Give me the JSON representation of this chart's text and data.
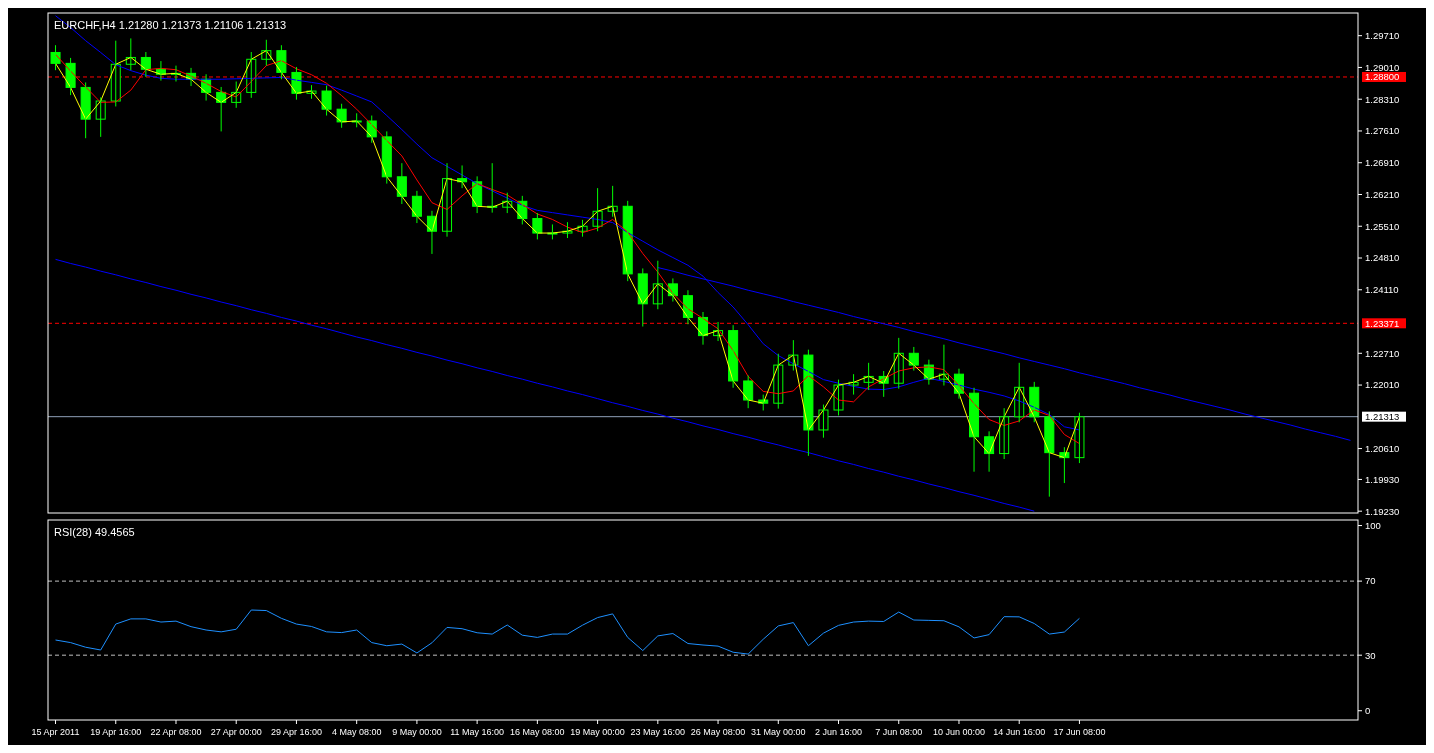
{
  "chart_data": [
    {
      "type": "candlestick",
      "title": "EURCHF,H4  1.21280 1.21373 1.21106 1.21313",
      "ylim": [
        1.1919,
        1.3021
      ],
      "yticks": [
        {
          "value": 1.2971,
          "label": "1.29710"
        },
        {
          "value": 1.2901,
          "label": "1.29010"
        },
        {
          "value": 1.2831,
          "label": "1.28310"
        },
        {
          "value": 1.2761,
          "label": "1.27610"
        },
        {
          "value": 1.2691,
          "label": "1.26910"
        },
        {
          "value": 1.2621,
          "label": "1.26210"
        },
        {
          "value": 1.2551,
          "label": "1.25510"
        },
        {
          "value": 1.2481,
          "label": "1.24810"
        },
        {
          "value": 1.2411,
          "label": "1.24110"
        },
        {
          "value": 1.2271,
          "label": "1.22710"
        },
        {
          "value": 1.2201,
          "label": "1.22010"
        },
        {
          "value": 1.2061,
          "label": "1.20610"
        },
        {
          "value": 1.1993,
          "label": "1.19930"
        },
        {
          "value": 1.1923,
          "label": "1.19230"
        }
      ],
      "tick_labels": "y",
      "ref_lines": [
        {
          "axis": "y",
          "value": 1.288,
          "label": "1.28800",
          "color": "#ff0000",
          "line_style": "dashed"
        },
        {
          "axis": "y",
          "value": 1.23371,
          "label": "1.23371",
          "color": "#ff0000",
          "line_style": "dashed"
        },
        {
          "axis": "y",
          "value": 1.21313,
          "label": "1.21313",
          "color": "#8fa0b8",
          "line_style": "solid"
        }
      ],
      "series": [
        {
          "type": "line",
          "color": "#0000ff",
          "values": [
            1.2478,
            1.2469,
            1.2461,
            1.2452,
            1.2444,
            1.2435,
            1.2427,
            1.2418,
            1.241,
            1.2401,
            1.2393,
            1.2384,
            1.2376,
            1.2367,
            1.2359,
            1.235,
            1.2342,
            1.2333,
            1.2325,
            1.2316,
            1.2307,
            1.2299,
            1.229,
            1.2282,
            1.2273,
            1.2265,
            1.2256,
            1.2248,
            1.2239,
            1.2231,
            1.2222,
            1.2214,
            1.2205,
            1.2197,
            1.2188,
            1.218,
            1.2171,
            1.2162,
            1.2154,
            1.2145,
            1.2137,
            1.2128,
            1.212,
            1.2111,
            1.2103,
            1.2094,
            1.2086,
            1.2077,
            1.2069,
            1.206,
            1.2052,
            1.2043,
            1.2034,
            1.2026,
            1.2017,
            1.2009,
            1.2,
            1.1992,
            1.1983,
            1.1975,
            1.1966,
            1.1958,
            1.1949,
            1.194,
            1.1932,
            1.1923,
            null,
            null,
            null,
            null,
            null,
            null,
            null,
            null,
            null,
            null,
            null,
            null,
            null,
            null,
            null,
            null,
            null,
            null,
            null,
            null,
            null
          ]
        },
        {
          "type": "line",
          "color": "#0000ff",
          "values": [
            null,
            null,
            null,
            null,
            null,
            null,
            null,
            null,
            null,
            null,
            null,
            null,
            null,
            null,
            null,
            null,
            null,
            null,
            null,
            null,
            null,
            null,
            null,
            null,
            null,
            null,
            null,
            null,
            null,
            null,
            null,
            null,
            null,
            null,
            null,
            null,
            null,
            null,
            null,
            null,
            1.246,
            1.2452,
            1.2443,
            1.2435,
            1.2427,
            1.2419,
            1.241,
            1.2402,
            1.2394,
            1.2385,
            1.2377,
            1.2369,
            1.2361,
            1.2352,
            1.2344,
            1.2336,
            1.2328,
            1.2319,
            1.2311,
            1.2303,
            1.2294,
            1.2286,
            1.2278,
            1.227,
            1.2261,
            1.2253,
            1.2245,
            1.2237,
            1.2228,
            1.222,
            1.2212,
            1.2204,
            1.2195,
            1.2187,
            1.2179,
            1.217,
            1.2162,
            1.2154,
            1.2146,
            1.2137,
            1.2129,
            1.2121,
            1.2113,
            1.2104,
            1.2096,
            1.2088,
            1.2079
          ]
        },
        {
          "type": "line",
          "color": "#0000ff",
          "values": [
            1.3015,
            1.2989,
            1.296,
            1.2934,
            1.2907,
            1.2894,
            1.2884,
            1.2877,
            1.2875,
            1.2875,
            1.2875,
            1.2875,
            1.2876,
            1.2877,
            1.2878,
            1.2879,
            1.2873,
            1.2868,
            1.2863,
            1.2851,
            1.2838,
            1.2825,
            1.2795,
            1.2764,
            1.2732,
            1.2702,
            1.2683,
            1.2664,
            1.2645,
            1.2629,
            1.2613,
            1.2597,
            1.2586,
            1.2581,
            1.2576,
            1.2571,
            1.2566,
            1.2559,
            1.2537,
            1.2518,
            1.2499,
            1.2482,
            1.2465,
            1.2441,
            1.2405,
            1.2373,
            1.2334,
            1.2292,
            1.2266,
            1.2248,
            1.2231,
            1.2213,
            1.2205,
            1.2198,
            1.2192,
            1.2191,
            1.2197,
            1.2207,
            1.2216,
            1.2209,
            1.2201,
            1.2192,
            1.2185,
            1.2177,
            1.2166,
            1.2152,
            1.2136,
            1.2109,
            1.2102,
            null,
            null,
            null,
            null,
            null,
            null,
            null,
            null,
            null,
            null,
            null,
            null,
            null,
            null,
            null,
            null,
            null,
            null
          ]
        },
        {
          "type": "line",
          "color": "#ff0000",
          "values": [
            1.293,
            1.2893,
            1.2858,
            1.2824,
            1.2825,
            1.2851,
            1.2896,
            1.2899,
            1.2896,
            1.2882,
            1.2866,
            1.2848,
            1.2836,
            1.287,
            1.2905,
            1.2916,
            1.2898,
            1.2885,
            1.2866,
            1.2839,
            1.2809,
            1.2775,
            1.274,
            1.2706,
            1.2653,
            1.2603,
            1.2588,
            1.2618,
            1.2645,
            1.2632,
            1.262,
            1.2599,
            1.2578,
            1.2566,
            1.2549,
            1.2537,
            1.2547,
            1.2566,
            1.2538,
            1.2491,
            1.245,
            1.2403,
            1.2369,
            1.2348,
            1.2325,
            1.2277,
            1.222,
            1.2187,
            1.2182,
            1.2188,
            1.2222,
            1.2197,
            1.2168,
            1.2164,
            1.2197,
            1.2215,
            1.2232,
            1.2239,
            1.2241,
            1.2235,
            1.22,
            1.216,
            1.2125,
            1.2112,
            1.2122,
            1.2146,
            1.2134,
            1.2092,
            1.2072,
            null,
            null,
            null,
            null,
            null,
            null,
            null,
            null,
            null,
            null,
            null,
            null,
            null,
            null,
            null,
            null,
            null,
            null
          ]
        },
        {
          "type": "line",
          "color": "#ffff00",
          "values": [
            1.291,
            1.2857,
            1.2787,
            1.2827,
            1.2908,
            1.2923,
            1.2897,
            1.2886,
            1.2888,
            1.2875,
            1.2846,
            1.2824,
            1.2846,
            1.2919,
            1.2938,
            1.289,
            1.2844,
            1.2849,
            1.2809,
            1.2781,
            1.2783,
            1.2748,
            1.266,
            1.2617,
            1.2573,
            1.254,
            1.2656,
            1.2649,
            1.2595,
            1.2593,
            1.2606,
            1.2568,
            1.2536,
            1.2536,
            1.254,
            1.2551,
            1.2584,
            1.2595,
            1.2446,
            1.238,
            1.2424,
            1.2398,
            1.235,
            1.231,
            1.2321,
            1.221,
            1.2168,
            1.2161,
            1.2245,
            1.2267,
            1.2102,
            1.2146,
            1.2201,
            1.2207,
            1.222,
            1.2205,
            1.2271,
            1.2245,
            1.2214,
            1.2225,
            1.2183,
            1.2087,
            1.205,
            1.2131,
            1.2196,
            1.2131,
            1.2052,
            1.2041,
            1.2131,
            null,
            null,
            null,
            null,
            null,
            null,
            null,
            null,
            null,
            null,
            null,
            null,
            null,
            null,
            null,
            null,
            null,
            null
          ]
        },
        {
          "color": "#00ff00",
          "ohlc": [
            [
              1.2934,
              1.295,
              1.2895,
              1.291
            ],
            [
              1.291,
              1.2922,
              1.284,
              1.2857
            ],
            [
              1.2857,
              1.2868,
              1.2745,
              1.2787
            ],
            [
              1.2787,
              1.2835,
              1.2748,
              1.2827
            ],
            [
              1.2827,
              1.296,
              1.2815,
              1.2908
            ],
            [
              1.2908,
              1.2965,
              1.2895,
              1.2923
            ],
            [
              1.2923,
              1.2935,
              1.288,
              1.2897
            ],
            [
              1.2897,
              1.2915,
              1.2872,
              1.2886
            ],
            [
              1.2886,
              1.2905,
              1.287,
              1.2888
            ],
            [
              1.2888,
              1.29,
              1.286,
              1.2875
            ],
            [
              1.2875,
              1.2886,
              1.2828,
              1.2846
            ],
            [
              1.2846,
              1.2858,
              1.276,
              1.2824
            ],
            [
              1.2824,
              1.287,
              1.2812,
              1.2846
            ],
            [
              1.2846,
              1.2935,
              1.2834,
              1.2919
            ],
            [
              1.2919,
              1.2962,
              1.2905,
              1.2938
            ],
            [
              1.2938,
              1.295,
              1.2875,
              1.289
            ],
            [
              1.289,
              1.2902,
              1.283,
              1.2844
            ],
            [
              1.2844,
              1.2862,
              1.2832,
              1.2849
            ],
            [
              1.2849,
              1.2861,
              1.2795,
              1.2809
            ],
            [
              1.2809,
              1.2821,
              1.2768,
              1.2781
            ],
            [
              1.2781,
              1.28,
              1.2769,
              1.2783
            ],
            [
              1.2783,
              1.2795,
              1.2735,
              1.2748
            ],
            [
              1.2748,
              1.276,
              1.2645,
              1.266
            ],
            [
              1.266,
              1.269,
              1.26,
              1.2617
            ],
            [
              1.2617,
              1.2629,
              1.2558,
              1.2573
            ],
            [
              1.2573,
              1.2585,
              1.249,
              1.254
            ],
            [
              1.254,
              1.269,
              1.2528,
              1.2656
            ],
            [
              1.2656,
              1.2685,
              1.2635,
              1.2649
            ],
            [
              1.2649,
              1.2661,
              1.258,
              1.2595
            ],
            [
              1.2595,
              1.269,
              1.2581,
              1.2593
            ],
            [
              1.2593,
              1.2625,
              1.258,
              1.2606
            ],
            [
              1.2606,
              1.2618,
              1.2555,
              1.2568
            ],
            [
              1.2568,
              1.258,
              1.2522,
              1.2536
            ],
            [
              1.2536,
              1.2555,
              1.2522,
              1.2536
            ],
            [
              1.2536,
              1.256,
              1.2525,
              1.254
            ],
            [
              1.254,
              1.2565,
              1.2528,
              1.2551
            ],
            [
              1.2551,
              1.2635,
              1.254,
              1.2584
            ],
            [
              1.2584,
              1.264,
              1.2572,
              1.2595
            ],
            [
              1.2595,
              1.2607,
              1.243,
              1.2446
            ],
            [
              1.2446,
              1.2458,
              1.233,
              1.238
            ],
            [
              1.238,
              1.2475,
              1.2368,
              1.2424
            ],
            [
              1.2424,
              1.2436,
              1.2385,
              1.2398
            ],
            [
              1.2398,
              1.241,
              1.2335,
              1.235
            ],
            [
              1.235,
              1.2362,
              1.229,
              1.231
            ],
            [
              1.231,
              1.234,
              1.2298,
              1.2321
            ],
            [
              1.2321,
              1.2333,
              1.2195,
              1.221
            ],
            [
              1.221,
              1.2222,
              1.215,
              1.2168
            ],
            [
              1.2168,
              1.218,
              1.2145,
              1.2161
            ],
            [
              1.2161,
              1.227,
              1.2149,
              1.2245
            ],
            [
              1.2245,
              1.23,
              1.2233,
              1.2267
            ],
            [
              1.2267,
              1.2279,
              1.2045,
              1.2102
            ],
            [
              1.2102,
              1.2158,
              1.2085,
              1.2146
            ],
            [
              1.2146,
              1.2213,
              1.2134,
              1.2201
            ],
            [
              1.2201,
              1.2225,
              1.218,
              1.2207
            ],
            [
              1.2207,
              1.225,
              1.219,
              1.222
            ],
            [
              1.222,
              1.2232,
              1.2175,
              1.2205
            ],
            [
              1.2205,
              1.2305,
              1.2193,
              1.2271
            ],
            [
              1.2271,
              1.2285,
              1.2233,
              1.2245
            ],
            [
              1.2245,
              1.2257,
              1.2202,
              1.2214
            ],
            [
              1.2214,
              1.229,
              1.22,
              1.2225
            ],
            [
              1.2225,
              1.2237,
              1.2171,
              1.2183
            ],
            [
              1.2183,
              1.2195,
              1.201,
              1.2087
            ],
            [
              1.2087,
              1.2099,
              1.201,
              1.205
            ],
            [
              1.205,
              1.215,
              1.2038,
              1.2131
            ],
            [
              1.2131,
              1.225,
              1.2119,
              1.2196
            ],
            [
              1.2196,
              1.2208,
              1.2119,
              1.2131
            ],
            [
              1.2131,
              1.2143,
              1.1955,
              1.2052
            ],
            [
              1.2052,
              1.2064,
              1.1985,
              1.2041
            ],
            [
              1.2041,
              1.214,
              1.2029,
              1.2131
            ],
            null,
            null,
            null,
            null,
            null,
            null,
            null,
            null,
            null,
            null,
            null,
            null,
            null,
            null,
            null,
            null,
            null,
            null
          ]
        }
      ]
    },
    {
      "type": "line",
      "title": "RSI(28) 49.4565",
      "ylim": [
        -5,
        103
      ],
      "yticks": [
        0,
        30,
        70,
        100
      ],
      "categories": [
        "15 Apr 2011",
        null,
        null,
        null,
        "19 Apr 16:00",
        null,
        null,
        null,
        "22 Apr 08:00",
        null,
        null,
        null,
        "27 Apr 00:00",
        null,
        null,
        null,
        "29 Apr 16:00",
        null,
        null,
        null,
        "4 May 08:00",
        null,
        null,
        null,
        "9 May 00:00",
        null,
        null,
        null,
        "11 May 16:00",
        null,
        null,
        null,
        "16 May 08:00",
        null,
        null,
        null,
        "19 May 00:00",
        null,
        null,
        null,
        "23 May 16:00",
        null,
        null,
        null,
        "26 May 08:00",
        null,
        null,
        null,
        "31 May 00:00",
        null,
        null,
        null,
        "2 Jun 16:00",
        null,
        null,
        null,
        "7 Jun 08:00",
        null,
        null,
        null,
        "10 Jun 00:00",
        null,
        null,
        null,
        "14 Jun 16:00",
        null,
        null,
        null,
        "17 Jun 08:00",
        null,
        null,
        null,
        null,
        null,
        null,
        null,
        null,
        null,
        null,
        null,
        null,
        null,
        null,
        null,
        null,
        null,
        null
      ],
      "ref_lines": [
        {
          "axis": "y",
          "value": 70,
          "color": "#c0c0c0",
          "line_style": "dashed"
        },
        {
          "axis": "y",
          "value": 30,
          "color": "#c0c0c0",
          "line_style": "dashed"
        }
      ],
      "series": [
        {
          "color": "#1e90ff",
          "values": [
            38.2,
            36.8,
            34.3,
            32.8,
            46.8,
            49.6,
            49.6,
            47.9,
            48.4,
            45.4,
            43.6,
            42.6,
            44,
            54.4,
            54.1,
            49.9,
            46.8,
            45.5,
            42.6,
            42.2,
            43.6,
            36.8,
            35.1,
            36,
            31.2,
            36.7,
            45,
            44.3,
            42.1,
            41.4,
            46.3,
            40.8,
            39.6,
            41.4,
            41.4,
            46.2,
            50.3,
            52.3,
            39.6,
            32.5,
            40.4,
            41.7,
            36.3,
            35.5,
            34.9,
            31.6,
            30.6,
            38.6,
            45.8,
            47.6,
            35.1,
            41.9,
            46.1,
            47.9,
            48.4,
            48.2,
            53.3,
            49,
            48.8,
            48.6,
            45.3,
            39.3,
            41.1,
            50.8,
            50.7,
            47.1,
            41.4,
            42.5,
            49.9,
            null,
            null,
            null,
            null,
            null,
            null,
            null,
            null,
            null,
            null,
            null,
            null,
            null,
            null,
            null,
            null,
            null,
            null
          ]
        }
      ]
    }
  ]
}
